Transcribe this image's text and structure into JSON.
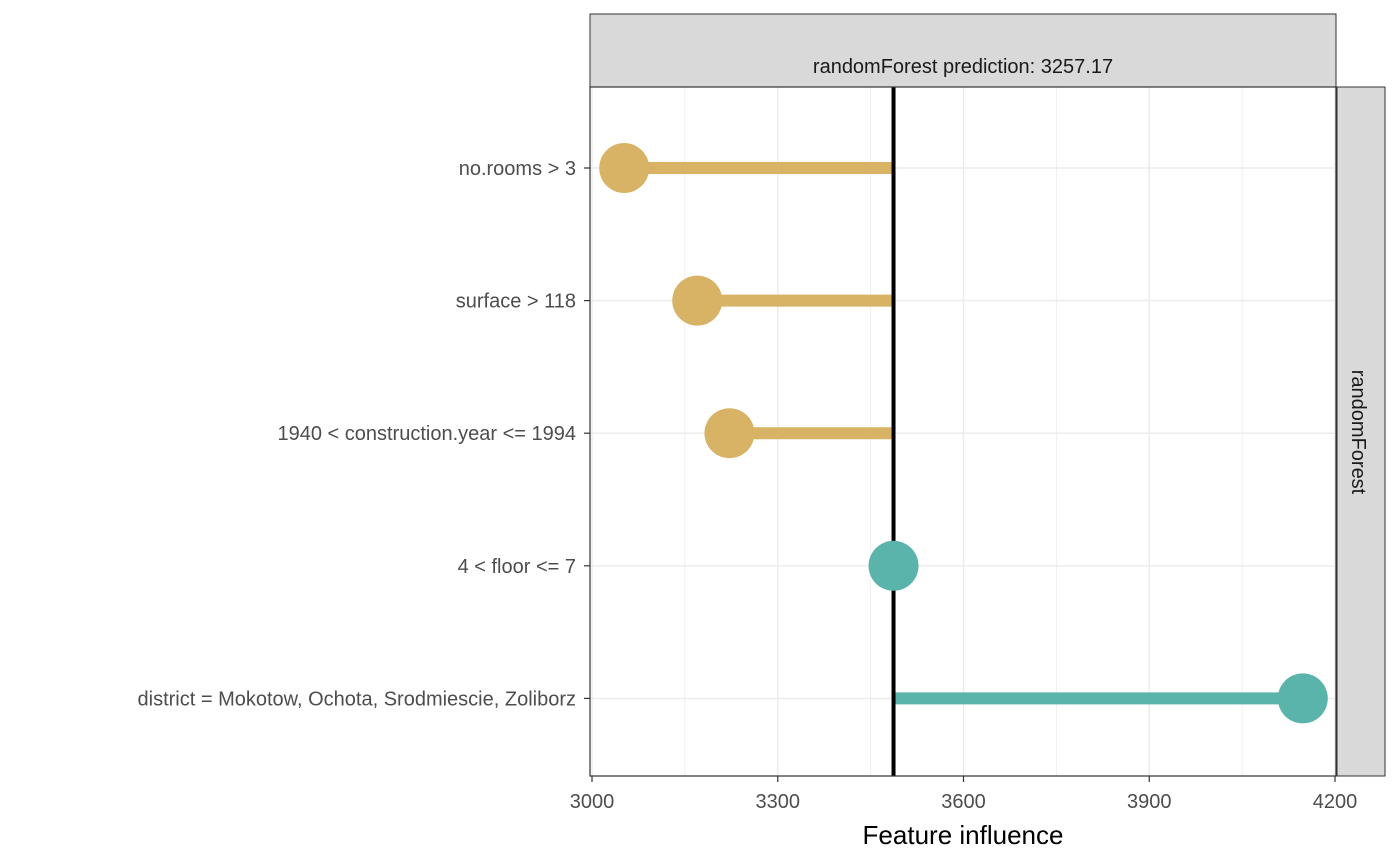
{
  "chart_data": {
    "type": "bar",
    "subtype": "lollipop-waterfall",
    "facet_title": "randomForest prediction:  3257.17",
    "strip_label": "randomForest",
    "xlabel": "Feature influence",
    "ylabel": "",
    "xlim": [
      3000,
      4200
    ],
    "x_ticks": [
      3000,
      3300,
      3600,
      3900,
      4200
    ],
    "baseline": 3487,
    "grid": true,
    "categories": [
      "no.rooms > 3",
      "surface > 118",
      "1940 < construction.year <= 1994",
      "4 < floor <= 7",
      "district = Mokotow, Ochota, Srodmiescie, Zoliborz"
    ],
    "values": [
      3052,
      3170,
      3222,
      3487,
      4148
    ],
    "colors": {
      "negative": "#D8B365",
      "positive": "#5AB4AC",
      "baseline": "#000000",
      "strip": "#D9D9D9",
      "grid": "#EBEBEB"
    }
  }
}
